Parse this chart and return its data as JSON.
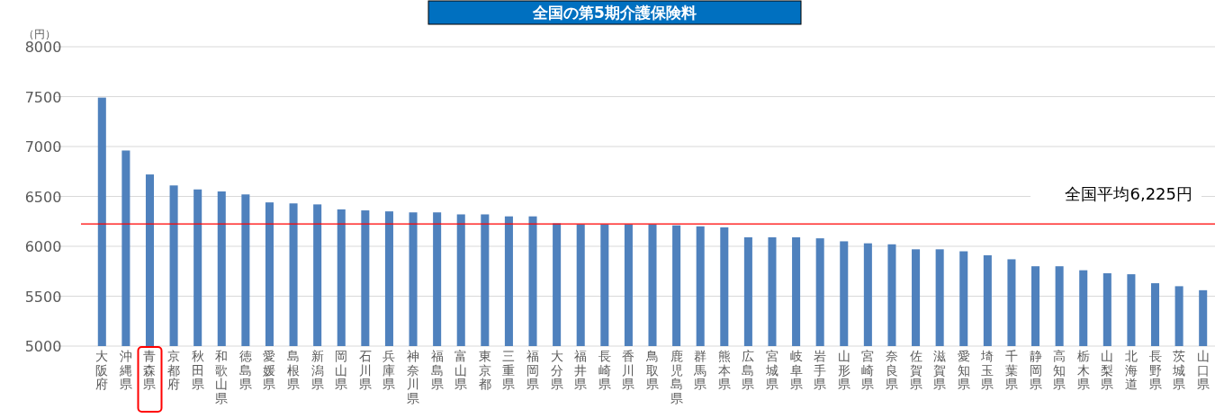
{
  "chart_data": {
    "type": "bar",
    "title": "全国の第5期介護保険料",
    "ylabel": "（円）",
    "categories": [
      "大阪府",
      "沖縄県",
      "青森県",
      "京都府",
      "秋田県",
      "和歌山県",
      "徳島県",
      "愛媛県",
      "島根県",
      "新潟県",
      "岡山県",
      "石川県",
      "兵庫県",
      "神奈川県",
      "福島県",
      "富山県",
      "東京都",
      "三重県",
      "福岡県",
      "大分県",
      "福井県",
      "長崎県",
      "香川県",
      "鳥取県",
      "鹿児島県",
      "群馬県",
      "熊本県",
      "広島県",
      "宮城県",
      "岐阜県",
      "岩手県",
      "山形県",
      "宮崎県",
      "奈良県",
      "佐賀県",
      "滋賀県",
      "愛知県",
      "埼玉県",
      "千葉県",
      "静岡県",
      "高知県",
      "栃木県",
      "山梨県",
      "北海道",
      "長野県",
      "茨城県",
      "山口県"
    ],
    "values": [
      7490,
      6960,
      6720,
      6610,
      6570,
      6550,
      6520,
      6440,
      6430,
      6420,
      6370,
      6360,
      6350,
      6340,
      6340,
      6320,
      6320,
      6300,
      6300,
      6230,
      6220,
      6220,
      6220,
      6220,
      6210,
      6200,
      6190,
      6090,
      6090,
      6090,
      6080,
      6050,
      6030,
      6020,
      5970,
      5970,
      5950,
      5910,
      5870,
      5800,
      5800,
      5760,
      5730,
      5720,
      5630,
      5600,
      5560
    ],
    "color": "#4f81bd",
    "ylim": [
      5000,
      8000
    ],
    "yticks": [
      5000,
      5500,
      6000,
      6500,
      7000,
      7500,
      8000
    ],
    "grid": "y",
    "ref_lines": [
      {
        "axis": "y",
        "value": 6225,
        "label": "全国平均6,225円",
        "color": "#ff0000"
      }
    ]
  }
}
